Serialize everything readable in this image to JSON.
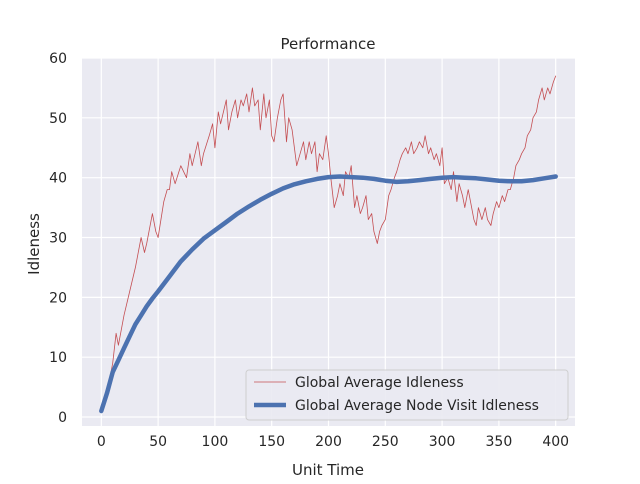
{
  "chart_data": {
    "type": "line",
    "title": "Performance",
    "xlabel": "Unit Time",
    "ylabel": "Idleness",
    "xlim": [
      -17,
      417
    ],
    "ylim": [
      -1.5,
      60
    ],
    "x_ticks": [
      0,
      50,
      100,
      150,
      200,
      250,
      300,
      350,
      400
    ],
    "y_ticks": [
      0,
      10,
      20,
      30,
      40,
      50,
      60
    ],
    "grid": true,
    "legend_position": "lower-right",
    "series": [
      {
        "name": "Global Average Idleness",
        "color": "#c44e52",
        "style": "thin",
        "x": [
          0,
          5,
          10,
          13,
          15,
          20,
          25,
          30,
          35,
          38,
          40,
          45,
          48,
          50,
          55,
          58,
          60,
          62,
          65,
          70,
          75,
          78,
          80,
          85,
          88,
          90,
          95,
          98,
          100,
          103,
          105,
          110,
          112,
          115,
          118,
          120,
          123,
          125,
          128,
          130,
          133,
          135,
          138,
          140,
          143,
          145,
          148,
          150,
          152,
          155,
          158,
          160,
          163,
          165,
          168,
          170,
          172,
          175,
          178,
          180,
          183,
          185,
          188,
          190,
          192,
          195,
          198,
          200,
          202,
          205,
          208,
          210,
          213,
          215,
          218,
          220,
          223,
          225,
          228,
          230,
          233,
          235,
          238,
          240,
          243,
          245,
          247,
          250,
          253,
          255,
          258,
          260,
          263,
          265,
          268,
          270,
          273,
          275,
          278,
          280,
          283,
          285,
          288,
          290,
          293,
          295,
          298,
          300,
          302,
          305,
          308,
          310,
          313,
          315,
          318,
          320,
          323,
          325,
          328,
          330,
          332,
          335,
          338,
          340,
          343,
          345,
          348,
          350,
          353,
          355,
          358,
          360,
          363,
          365,
          368,
          370,
          373,
          375,
          378,
          380,
          383,
          385,
          388,
          390,
          393,
          395,
          398,
          400
        ],
        "y": [
          1,
          4,
          9,
          14,
          12,
          17,
          21,
          25,
          30,
          27.5,
          29,
          34,
          31,
          30,
          36,
          38,
          38,
          41,
          39,
          42,
          40,
          44,
          42,
          46,
          42,
          44,
          47,
          49,
          45,
          51,
          49,
          53,
          48,
          51,
          53,
          50,
          53,
          52,
          54,
          51,
          55,
          52,
          53,
          48,
          54,
          50,
          53,
          47,
          46,
          50,
          53,
          54,
          46,
          50,
          48,
          45,
          42,
          44,
          46,
          43,
          46,
          44,
          46,
          41,
          44,
          43,
          47,
          44,
          40,
          35,
          37,
          39,
          37,
          41,
          40,
          42,
          35,
          37,
          34,
          35,
          37,
          33,
          34,
          31,
          29,
          31,
          32,
          33,
          37,
          38,
          40,
          41,
          43,
          44,
          45,
          44,
          46,
          44,
          45,
          46,
          45,
          47,
          44,
          45,
          43,
          44,
          42,
          45,
          39,
          40,
          38,
          41,
          36,
          39,
          37,
          35,
          38,
          36,
          33,
          32,
          35,
          33,
          35,
          33,
          32,
          34,
          36,
          35,
          37,
          36,
          38,
          38,
          40,
          42,
          43,
          44,
          45,
          47,
          48,
          50,
          51,
          53,
          55,
          53,
          55,
          54,
          56,
          57
        ]
      },
      {
        "name": "Global Average Node Visit Idleness",
        "color": "#4c72b0",
        "style": "thick",
        "x": [
          0,
          5,
          10,
          15,
          20,
          25,
          30,
          35,
          40,
          45,
          50,
          60,
          70,
          80,
          90,
          100,
          110,
          120,
          130,
          140,
          150,
          160,
          170,
          180,
          190,
          200,
          210,
          220,
          230,
          240,
          250,
          260,
          270,
          280,
          290,
          300,
          310,
          320,
          330,
          340,
          350,
          360,
          370,
          380,
          390,
          400
        ],
        "y": [
          1,
          4,
          7.5,
          9.5,
          11.5,
          13.5,
          15.5,
          17,
          18.5,
          19.8,
          21,
          23.5,
          26,
          28,
          29.8,
          31.2,
          32.6,
          34,
          35.2,
          36.3,
          37.3,
          38.2,
          38.9,
          39.4,
          39.8,
          40.1,
          40.2,
          40.1,
          40.0,
          39.8,
          39.5,
          39.3,
          39.4,
          39.6,
          39.8,
          40.0,
          40.1,
          40.0,
          39.9,
          39.7,
          39.5,
          39.4,
          39.4,
          39.6,
          39.9,
          40.2
        ]
      }
    ]
  }
}
